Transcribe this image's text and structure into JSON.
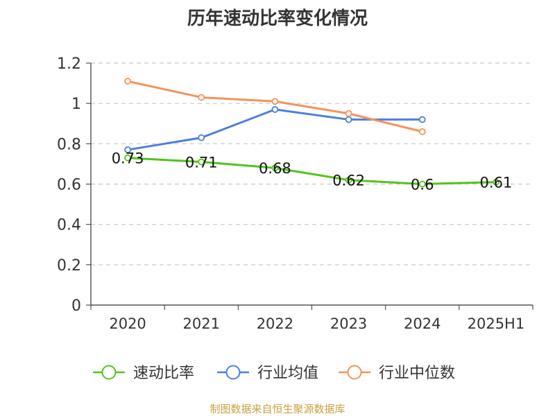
{
  "chart_data": {
    "type": "line",
    "title": "历年速动比率变化情况",
    "categories": [
      "2020",
      "2021",
      "2022",
      "2023",
      "2024",
      "2025H1"
    ],
    "y_ticks": [
      "0",
      "0.2",
      "0.4",
      "0.6",
      "0.8",
      "1",
      "1.2"
    ],
    "ylim": [
      0,
      1.2
    ],
    "grid": true,
    "legend_position": "bottom",
    "series": [
      {
        "name": "速动比率",
        "color": "#52c41a",
        "values": [
          0.73,
          0.71,
          0.68,
          0.62,
          0.6,
          0.61
        ],
        "labels": [
          "0.73",
          "0.71",
          "0.68",
          "0.62",
          "0.6",
          "0.61"
        ]
      },
      {
        "name": "行业均值",
        "color": "#4a7fdc",
        "values": [
          0.77,
          0.83,
          0.97,
          0.92,
          0.92,
          null
        ]
      },
      {
        "name": "行业中位数",
        "color": "#f5925a",
        "values": [
          1.11,
          1.03,
          1.01,
          0.95,
          0.86,
          null
        ]
      }
    ]
  },
  "source": "制图数据来自恒生聚源数据库"
}
